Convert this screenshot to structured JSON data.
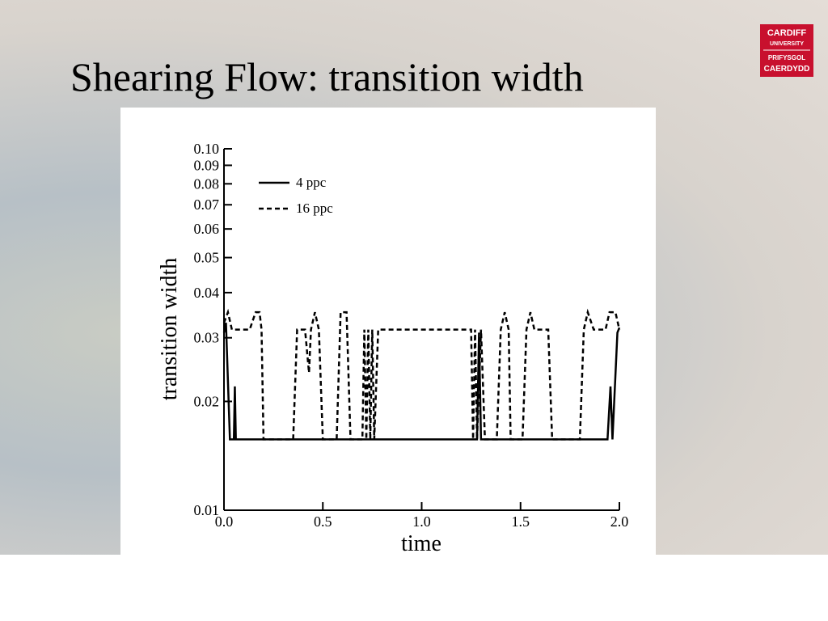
{
  "logo": [
    "CARDIFF",
    "UNIVERSITY",
    "PRIFYSGOL",
    "CAERDYDD"
  ],
  "chart_data": {
    "type": "line",
    "title": "Shearing Flow: transition width",
    "xlabel": "time",
    "ylabel": "transition width",
    "yscale": "log",
    "legend": "upper left",
    "xlim": [
      0,
      2
    ],
    "ylim": [
      0.01,
      0.1
    ],
    "xticks": [
      {
        "value": 0,
        "label": "0.0"
      },
      0.5,
      {
        "value": 1,
        "label": "1.0"
      },
      1.5,
      {
        "value": 2,
        "label": "2.0"
      }
    ],
    "yticks": [
      0.01,
      0.02,
      0.03,
      0.04,
      0.05,
      0.06,
      0.07,
      0.08,
      0.09,
      {
        "value": 0.1,
        "label": "0.10"
      }
    ],
    "series": [
      {
        "name": "4 ppc",
        "color": "#000000",
        "dash": "solid",
        "x": [
          0,
          0.01,
          0.03,
          0.05,
          0.055,
          0.06,
          0.07,
          1.28,
          1.29,
          1.3,
          1.94,
          1.955,
          1.965,
          1.99,
          2.0
        ],
        "values": [
          0.031,
          0.033,
          0.0157,
          0.0157,
          0.022,
          0.0157,
          0.0157,
          0.0157,
          0.031,
          0.0157,
          0.0157,
          0.022,
          0.0157,
          0.031,
          0.032
        ]
      },
      {
        "name": "16 ppc",
        "color": "#000000",
        "dash": "dashed",
        "x": [
          0,
          0.02,
          0.04,
          0.13,
          0.16,
          0.18,
          0.19,
          0.2,
          0.35,
          0.37,
          0.41,
          0.43,
          0.44,
          0.46,
          0.48,
          0.5,
          0.57,
          0.59,
          0.62,
          0.64,
          0.7,
          0.71,
          0.72,
          0.73,
          0.74,
          0.75,
          0.76,
          0.78,
          1.25,
          1.26,
          1.27,
          1.28,
          1.3,
          1.32,
          1.38,
          1.4,
          1.42,
          1.44,
          1.45,
          1.51,
          1.53,
          1.55,
          1.57,
          1.64,
          1.66,
          1.8,
          1.82,
          1.84,
          1.87,
          1.93,
          1.95,
          1.98,
          2.0
        ],
        "values": [
          0.033,
          0.0353,
          0.0316,
          0.0316,
          0.0353,
          0.0353,
          0.0316,
          0.0157,
          0.0157,
          0.0316,
          0.0316,
          0.024,
          0.0316,
          0.0353,
          0.0316,
          0.0157,
          0.0157,
          0.0353,
          0.0353,
          0.0157,
          0.0157,
          0.0316,
          0.0157,
          0.0316,
          0.0157,
          0.0316,
          0.0157,
          0.0316,
          0.0316,
          0.0157,
          0.0316,
          0.0157,
          0.0316,
          0.0157,
          0.0157,
          0.0316,
          0.0353,
          0.0316,
          0.0157,
          0.0157,
          0.0316,
          0.0353,
          0.0316,
          0.0316,
          0.0157,
          0.0157,
          0.0316,
          0.0353,
          0.0316,
          0.0316,
          0.0353,
          0.0353,
          0.0316
        ]
      }
    ]
  }
}
